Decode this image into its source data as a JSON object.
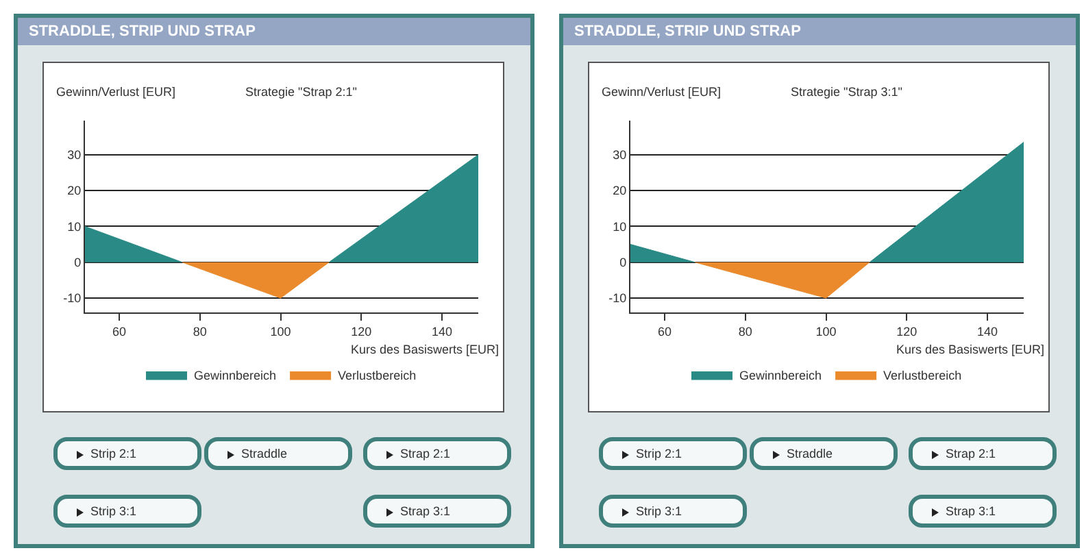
{
  "chart_data": [
    {
      "type": "area",
      "title": "STRADDLE, STRIP UND STRAP",
      "subtitle": "Strategie \"Strap 2:1\"",
      "ylabel": "Gewinn/Verlust [EUR]",
      "xlabel": "Kurs des Basiswerts [EUR]",
      "series": [
        {
          "name": "Gewinnbereich",
          "color": "#2a8a85",
          "x": [
            51.5,
            75.6,
            100,
            112,
            149
          ],
          "values": [
            10,
            0,
            null,
            0,
            30
          ]
        },
        {
          "name": "Verlustbereich",
          "color": "#ea8a2c",
          "x": [
            75.6,
            100,
            112
          ],
          "values": [
            0,
            -10,
            0
          ]
        }
      ],
      "xlim": [
        51.5,
        149
      ],
      "xticks": [
        60,
        80,
        100,
        120,
        140
      ],
      "ylim": [
        -14,
        39.5
      ],
      "yticks": [
        -10,
        0,
        10,
        20,
        30
      ],
      "grid": "y",
      "legend": "bottom",
      "annotations": [
        "Strip 2:1",
        "Straddle",
        "Strap 2:1",
        "Strip 3:1",
        "Strap 3:1"
      ]
    },
    {
      "type": "area",
      "title": "STRADDLE, STRIP UND STRAP",
      "subtitle": "Strategie \"Strap 3:1\"",
      "ylabel": "Gewinn/Verlust [EUR]",
      "xlabel": "Kurs des Basiswerts [EUR]",
      "series": [
        {
          "name": "Gewinnbereich",
          "color": "#2a8a85",
          "x": [
            51.5,
            67.5,
            100,
            110.8,
            149
          ],
          "values": [
            5,
            0,
            null,
            0,
            33.5
          ]
        },
        {
          "name": "Verlustbereich",
          "color": "#ea8a2c",
          "x": [
            67.5,
            100,
            110.8
          ],
          "values": [
            0,
            -10,
            0
          ]
        }
      ],
      "xlim": [
        51.5,
        149
      ],
      "xticks": [
        60,
        80,
        100,
        120,
        140
      ],
      "ylim": [
        -14,
        39.5
      ],
      "yticks": [
        -10,
        0,
        10,
        20,
        30
      ],
      "grid": "y",
      "legend": "bottom",
      "annotations": [
        "Strip 2:1",
        "Straddle",
        "Strap 2:1",
        "Strip 3:1",
        "Strap 3:1"
      ]
    }
  ]
}
